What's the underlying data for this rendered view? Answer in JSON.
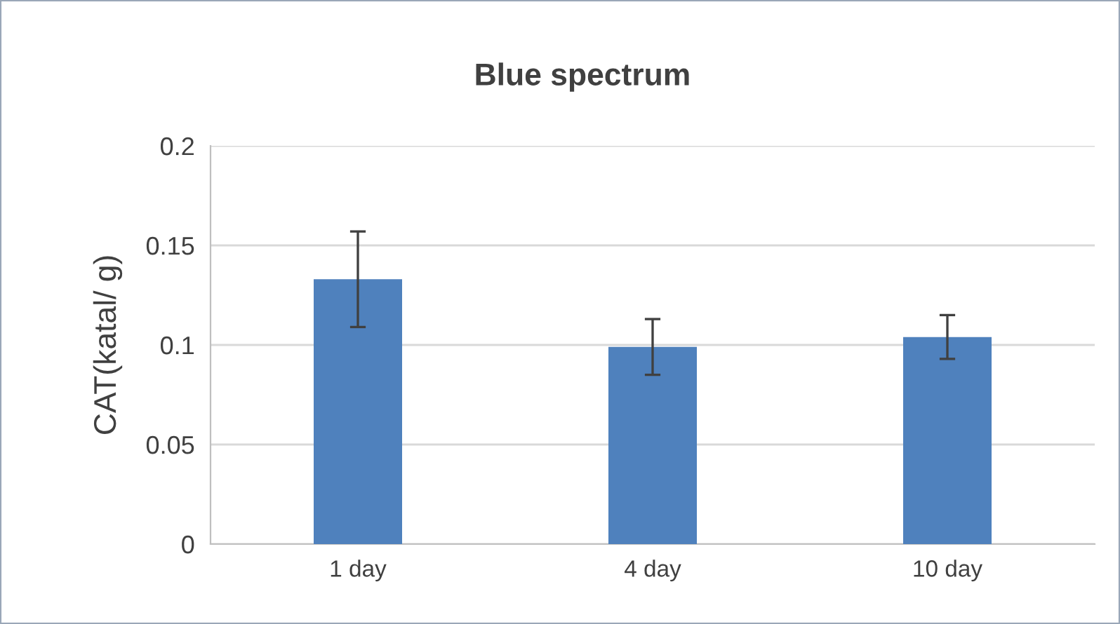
{
  "chart_data": {
    "type": "bar",
    "title": "Blue spectrum",
    "ylabel": "CAT(katal/ g)",
    "categories": [
      "1 day",
      "4 day",
      "10 day"
    ],
    "values": [
      0.133,
      0.099,
      0.104
    ],
    "errors": [
      0.024,
      0.014,
      0.011
    ],
    "color": "#4f81bd",
    "ylim": [
      0,
      0.2
    ],
    "yticks": [
      0,
      0.05,
      0.1,
      0.15,
      0.2
    ],
    "grid": "y"
  }
}
